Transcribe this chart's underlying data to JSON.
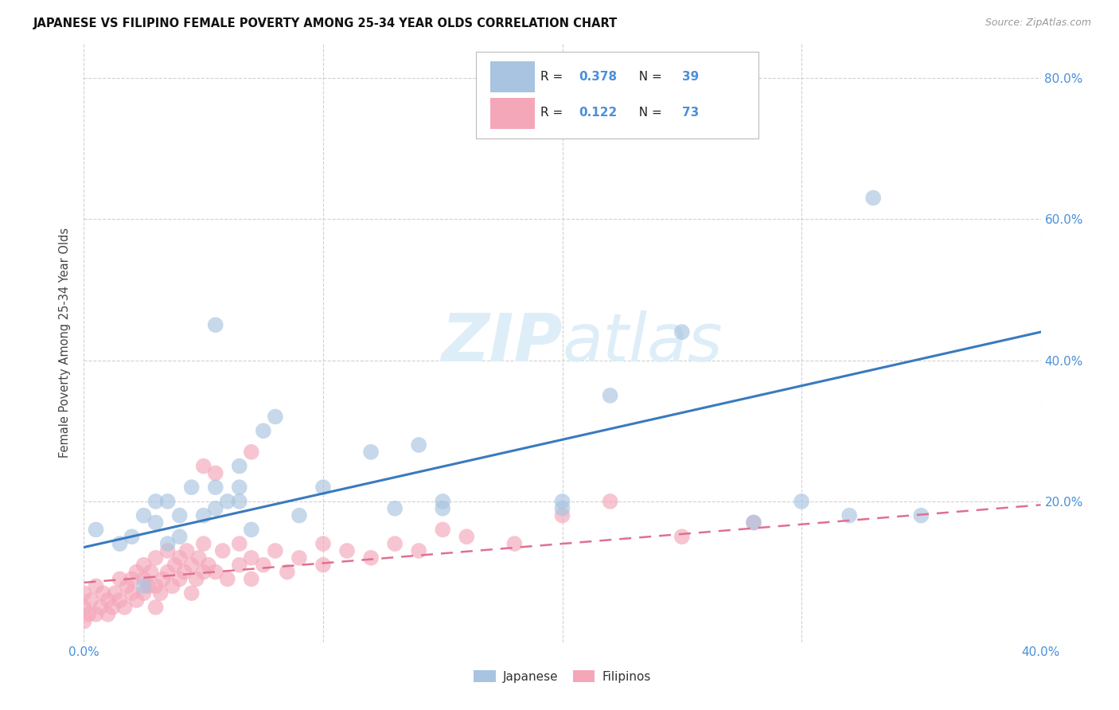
{
  "title": "JAPANESE VS FILIPINO FEMALE POVERTY AMONG 25-34 YEAR OLDS CORRELATION CHART",
  "source": "Source: ZipAtlas.com",
  "ylabel": "Female Poverty Among 25-34 Year Olds",
  "xlim": [
    0.0,
    0.4
  ],
  "ylim": [
    0.0,
    0.85
  ],
  "japanese_color": "#a8c4e0",
  "japanese_line_color": "#3a7abf",
  "filipino_color": "#f4a7b9",
  "filipino_line_color": "#e07090",
  "japanese_R": 0.378,
  "japanese_N": 39,
  "filipino_R": 0.122,
  "filipino_N": 73,
  "legend_label1": "Japanese",
  "legend_label2": "Filipinos",
  "watermark": "ZIPatlas",
  "watermark_color": "#ddeef8",
  "background_color": "#ffffff",
  "grid_color": "#cccccc",
  "label_color": "#4a90d9",
  "japanese_line_y0": 0.135,
  "japanese_line_y1": 0.44,
  "filipino_line_y0": 0.085,
  "filipino_line_y1": 0.195,
  "japanese_scatter_x": [
    0.005,
    0.015,
    0.02,
    0.025,
    0.03,
    0.03,
    0.035,
    0.04,
    0.04,
    0.045,
    0.05,
    0.055,
    0.055,
    0.06,
    0.065,
    0.065,
    0.07,
    0.075,
    0.08,
    0.1,
    0.12,
    0.14,
    0.15,
    0.2,
    0.22,
    0.25,
    0.28,
    0.3,
    0.32,
    0.33,
    0.035,
    0.025,
    0.055,
    0.065,
    0.15,
    0.2,
    0.35,
    0.13,
    0.09
  ],
  "japanese_scatter_y": [
    0.16,
    0.14,
    0.15,
    0.18,
    0.17,
    0.2,
    0.2,
    0.15,
    0.18,
    0.22,
    0.18,
    0.19,
    0.22,
    0.2,
    0.25,
    0.2,
    0.16,
    0.3,
    0.32,
    0.22,
    0.27,
    0.28,
    0.2,
    0.19,
    0.35,
    0.44,
    0.17,
    0.2,
    0.18,
    0.63,
    0.14,
    0.08,
    0.45,
    0.22,
    0.19,
    0.2,
    0.18,
    0.19,
    0.18
  ],
  "filipino_scatter_x": [
    0.0,
    0.0,
    0.0,
    0.002,
    0.003,
    0.005,
    0.005,
    0.007,
    0.008,
    0.01,
    0.01,
    0.012,
    0.013,
    0.015,
    0.015,
    0.017,
    0.018,
    0.02,
    0.02,
    0.022,
    0.022,
    0.025,
    0.025,
    0.025,
    0.027,
    0.028,
    0.03,
    0.03,
    0.032,
    0.033,
    0.035,
    0.035,
    0.037,
    0.038,
    0.04,
    0.04,
    0.042,
    0.043,
    0.045,
    0.045,
    0.047,
    0.048,
    0.05,
    0.05,
    0.052,
    0.055,
    0.058,
    0.06,
    0.065,
    0.065,
    0.07,
    0.07,
    0.075,
    0.08,
    0.085,
    0.09,
    0.1,
    0.1,
    0.11,
    0.12,
    0.13,
    0.14,
    0.15,
    0.16,
    0.18,
    0.2,
    0.22,
    0.25,
    0.28,
    0.05,
    0.07,
    0.055,
    0.03
  ],
  "filipino_scatter_y": [
    0.03,
    0.05,
    0.07,
    0.04,
    0.06,
    0.04,
    0.08,
    0.05,
    0.07,
    0.04,
    0.06,
    0.05,
    0.07,
    0.06,
    0.09,
    0.05,
    0.08,
    0.07,
    0.09,
    0.06,
    0.1,
    0.07,
    0.09,
    0.11,
    0.08,
    0.1,
    0.08,
    0.12,
    0.07,
    0.09,
    0.1,
    0.13,
    0.08,
    0.11,
    0.09,
    0.12,
    0.1,
    0.13,
    0.07,
    0.11,
    0.09,
    0.12,
    0.1,
    0.14,
    0.11,
    0.1,
    0.13,
    0.09,
    0.14,
    0.11,
    0.09,
    0.12,
    0.11,
    0.13,
    0.1,
    0.12,
    0.11,
    0.14,
    0.13,
    0.12,
    0.14,
    0.13,
    0.16,
    0.15,
    0.14,
    0.18,
    0.2,
    0.15,
    0.17,
    0.25,
    0.27,
    0.24,
    0.05
  ]
}
